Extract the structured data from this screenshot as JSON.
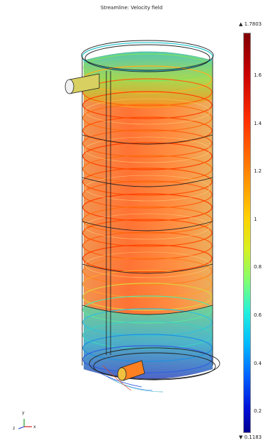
{
  "title": "Streamline: Velocity field",
  "colorbar": {
    "max_label": "▲ 1.7803",
    "min_label": "▼ 0.1183",
    "max_value": 1.7803,
    "min_value": 0.1183,
    "ticks": [
      {
        "value": 1.6,
        "label": "1.6"
      },
      {
        "value": 1.4,
        "label": "1.4"
      },
      {
        "value": 1.2,
        "label": "1.2"
      },
      {
        "value": 1.0,
        "label": "1"
      },
      {
        "value": 0.8,
        "label": "0.8"
      },
      {
        "value": 0.6,
        "label": "0.6"
      },
      {
        "value": 0.4,
        "label": "0.4"
      },
      {
        "value": 0.2,
        "label": "0.2"
      }
    ]
  },
  "axes": {
    "x_label": "x",
    "y_label": "y",
    "z_label": "z",
    "x_color": "#d02020",
    "y_color": "#20a020",
    "z_color": "#2040d0"
  }
}
